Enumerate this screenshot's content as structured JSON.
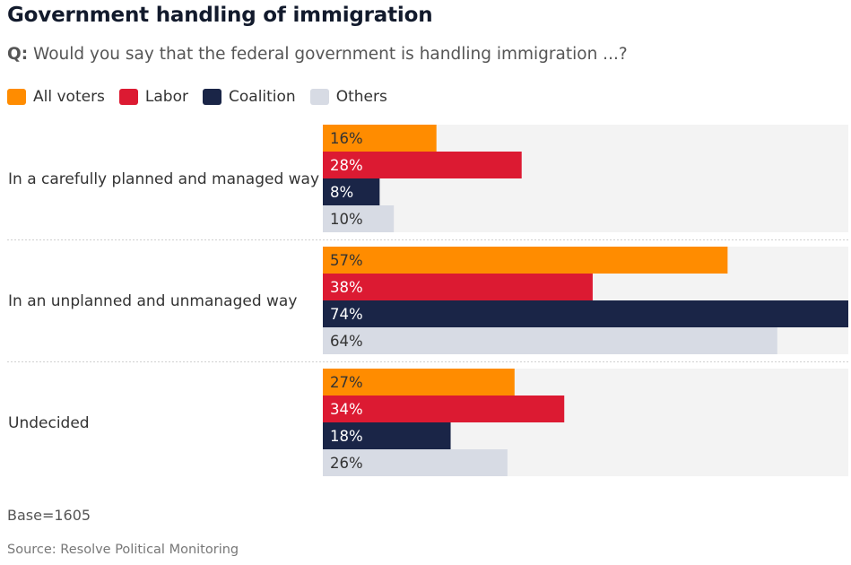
{
  "title": "Government handling of immigration",
  "question_prefix": "Q:",
  "question": "Would you say that the federal government is handling immigration ...?",
  "footnote": "Base=1605",
  "source": "Source: Resolve Political Monitoring",
  "chart_data": {
    "type": "bar",
    "orientation": "horizontal",
    "title": "Government handling of immigration",
    "categories": [
      "In a carefully planned and managed way",
      "In an unplanned and unmanaged way",
      "Undecided"
    ],
    "series": [
      {
        "name": "All voters",
        "color": "#ff8c00",
        "label_color": "#333333",
        "values": [
          16,
          57,
          27
        ]
      },
      {
        "name": "Labor",
        "color": "#dc1a32",
        "label_color": "#ffffff",
        "values": [
          28,
          38,
          34
        ]
      },
      {
        "name": "Coalition",
        "color": "#1a2547",
        "label_color": "#ffffff",
        "values": [
          8,
          74,
          18
        ]
      },
      {
        "name": "Others",
        "color": "#d7dbe4",
        "label_color": "#333333",
        "values": [
          10,
          64,
          26
        ]
      }
    ],
    "value_suffix": "%",
    "xlim": [
      0,
      74
    ],
    "legend": "top-left",
    "grid": false
  }
}
